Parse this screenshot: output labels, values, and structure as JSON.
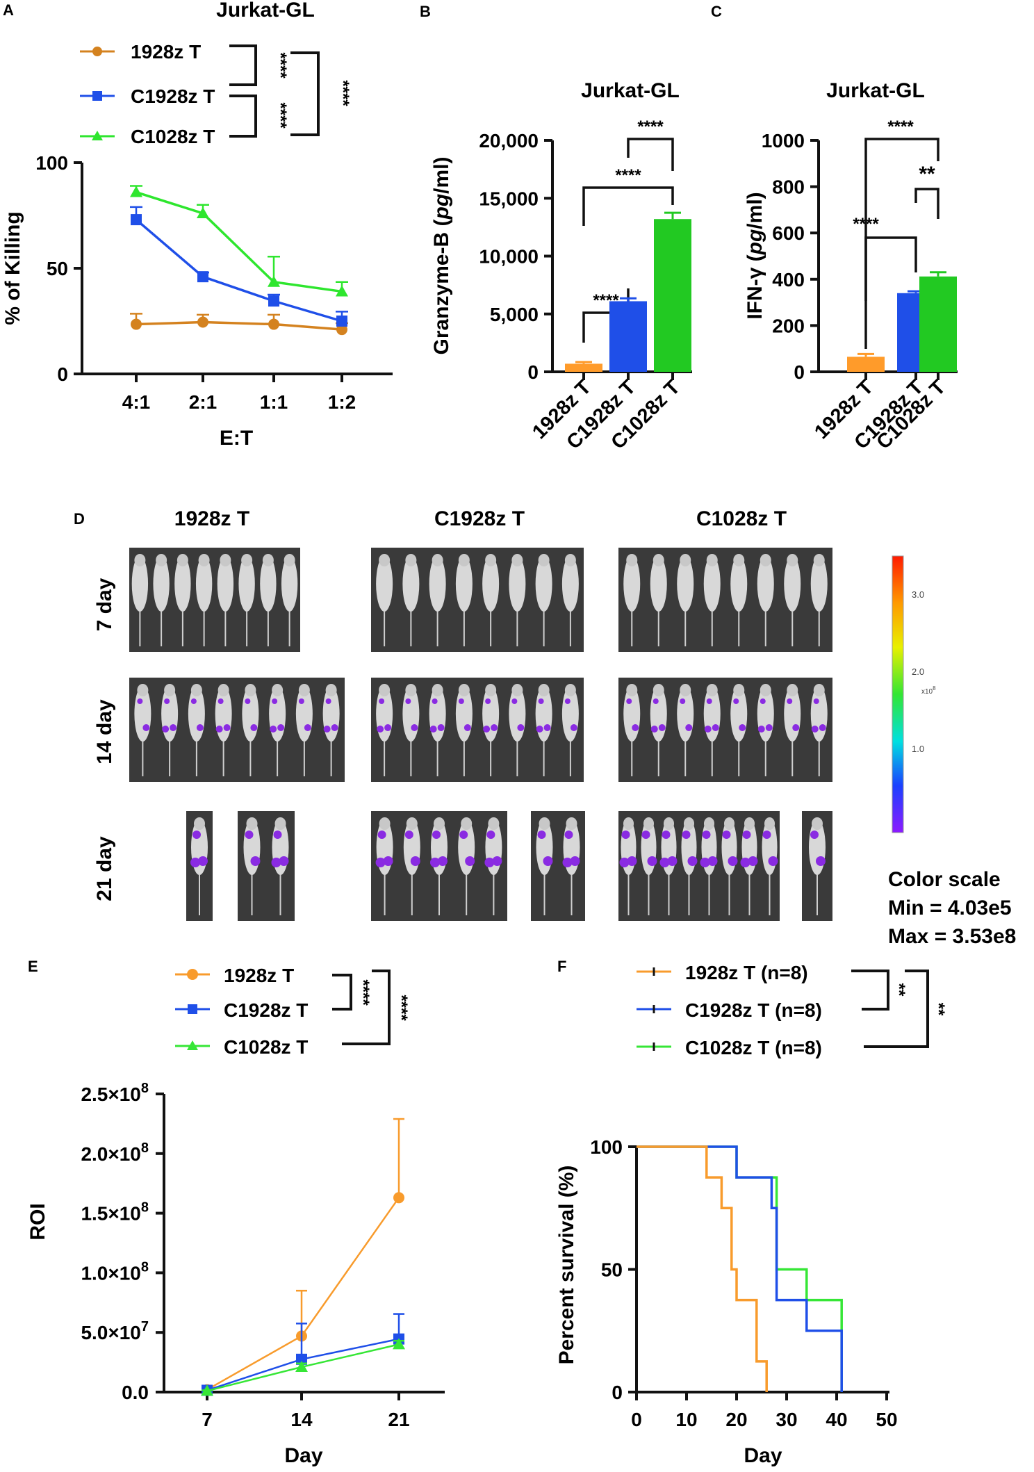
{
  "colors": {
    "c1928": "#d4821f",
    "c1928_bar": "#ff9b2a",
    "c1928_f": "#f89b2c",
    "cc1928": "#1f4fe8",
    "cc1028": "#2ee62e",
    "cc1028_bar": "#22c922",
    "cc1028_f": "#36e636",
    "black": "#111111"
  },
  "panelA": {
    "letter": "A",
    "title": "Jurkat-GL",
    "legend": [
      "1928z T",
      "C1928z T",
      "C1028z T"
    ],
    "sig": [
      "****",
      "****",
      "****"
    ]
  },
  "panelB": {
    "letter": "B",
    "sig": [
      "****",
      "****",
      "****"
    ]
  },
  "panelC": {
    "letter": "C",
    "sig": [
      "****",
      "**",
      "****"
    ]
  },
  "panelD": {
    "letter": "D",
    "groups": [
      "1928z T",
      "C1928z T",
      "C1028z T"
    ],
    "days": [
      "7 day",
      "14 day",
      "21 day"
    ],
    "scale_ticks": [
      "3.0",
      "2.0",
      "1.0"
    ],
    "scale_unit": "x10",
    "scale_exp": "8",
    "color_scale": [
      "Color scale",
      "Min = 4.03e5",
      "Max = 3.53e8"
    ]
  },
  "panelE": {
    "letter": "E",
    "legend": [
      "1928z T",
      "C1928z T",
      "C1028z T"
    ],
    "sig": [
      "****",
      "****"
    ]
  },
  "panelF": {
    "letter": "F",
    "legend": [
      "1928z T (n=8)",
      "C1928z T (n=8)",
      "C1028z T (n=8)"
    ],
    "sig": [
      "**",
      "**"
    ]
  },
  "chart_data": [
    {
      "panel": "A",
      "type": "line",
      "title": "Jurkat-GL",
      "xlabel": "E:T",
      "ylabel": "% of Killing",
      "categories": [
        "4:1",
        "2:1",
        "1:1",
        "1:2"
      ],
      "ylim": [
        0,
        100
      ],
      "yticks": [
        "0",
        "50",
        "100"
      ],
      "series": [
        {
          "name": "1928z T",
          "values": [
            23.5,
            24.5,
            23.5,
            21
          ],
          "err": [
            5,
            3.5,
            4.5,
            3
          ]
        },
        {
          "name": "C1928z T",
          "values": [
            73,
            46,
            34.5,
            25
          ],
          "err": [
            6,
            2,
            3,
            4.5
          ]
        },
        {
          "name": "C1028z T",
          "values": [
            86,
            76,
            43.5,
            39
          ],
          "err": [
            3,
            4,
            12,
            4.5
          ]
        }
      ]
    },
    {
      "panel": "B",
      "type": "bar",
      "title": "Jurkat-GL",
      "xlabel": "",
      "ylabel": "Granzyme-B (pg/ml)",
      "ylabel_parts": [
        "Granzyme-B (",
        "pg",
        "/ml)"
      ],
      "categories": [
        "1928z T",
        "C1928z T",
        "C1028z T"
      ],
      "values": [
        700,
        6100,
        13200
      ],
      "err": [
        150,
        250,
        550
      ],
      "ylim": [
        0,
        20000
      ],
      "yticks": [
        "0",
        "5,000",
        "10,000",
        "15,000",
        "20,000"
      ]
    },
    {
      "panel": "C",
      "type": "bar",
      "title": "Jurkat-GL",
      "xlabel": "",
      "ylabel": "IFN-γ (pg/ml)",
      "ylabel_parts": [
        "IFN-γ (",
        "pg",
        "/ml)"
      ],
      "categories": [
        "1928z T",
        "C1928z T",
        "C1028z T"
      ],
      "values": [
        65,
        340,
        412
      ],
      "err": [
        12,
        8,
        18
      ],
      "ylim": [
        0,
        1000
      ],
      "yticks": [
        "0",
        "200",
        "400",
        "600",
        "800",
        "1000"
      ]
    },
    {
      "panel": "E",
      "type": "line",
      "xlabel": "Day",
      "ylabel": "ROI",
      "x": [
        7,
        14,
        21
      ],
      "ylim": [
        0,
        250000000
      ],
      "yticks": [
        [
          "0.0",
          ""
        ],
        [
          "5.0×10",
          "7"
        ],
        [
          "1.0×10",
          "8"
        ],
        [
          "1.5×10",
          "8"
        ],
        [
          "2.0×10",
          "8"
        ],
        [
          "2.5×10",
          "8"
        ]
      ],
      "series": [
        {
          "name": "1928z T",
          "values": [
            2000000,
            47000000,
            163000000
          ],
          "err": [
            1000000,
            38000000,
            66000000
          ]
        },
        {
          "name": "C1928z T",
          "values": [
            1500000,
            27500000,
            44500000
          ],
          "err": [
            1000000,
            30000000,
            21000000
          ]
        },
        {
          "name": "C1028z T",
          "values": [
            1000000,
            21000000,
            40000000
          ],
          "err": [
            500000,
            3000000,
            3000000
          ]
        }
      ]
    },
    {
      "panel": "F",
      "type": "line",
      "xlabel": "Day",
      "ylabel": "Percent survival (%)",
      "xlim": [
        0,
        50
      ],
      "xticks": [
        "0",
        "10",
        "20",
        "30",
        "40",
        "50"
      ],
      "ylim": [
        0,
        100
      ],
      "yticks": [
        "0",
        "50",
        "100"
      ],
      "series": [
        {
          "name": "1928z T (n=8)",
          "steps": [
            [
              0,
              100
            ],
            [
              14,
              87.5
            ],
            [
              17,
              75
            ],
            [
              19,
              50
            ],
            [
              20,
              37.5
            ],
            [
              24,
              12.5
            ],
            [
              26,
              0
            ]
          ]
        },
        {
          "name": "C1928z T (n=8)",
          "steps": [
            [
              0,
              100
            ],
            [
              20,
              87.5
            ],
            [
              27,
              75
            ],
            [
              28,
              37.5
            ],
            [
              34,
              25
            ],
            [
              41,
              0
            ]
          ]
        },
        {
          "name": "C1028z T (n=8)",
          "steps": [
            [
              0,
              100
            ],
            [
              20,
              87.5
            ],
            [
              28,
              50
            ],
            [
              34,
              37.5
            ],
            [
              41,
              0
            ]
          ]
        }
      ]
    }
  ]
}
